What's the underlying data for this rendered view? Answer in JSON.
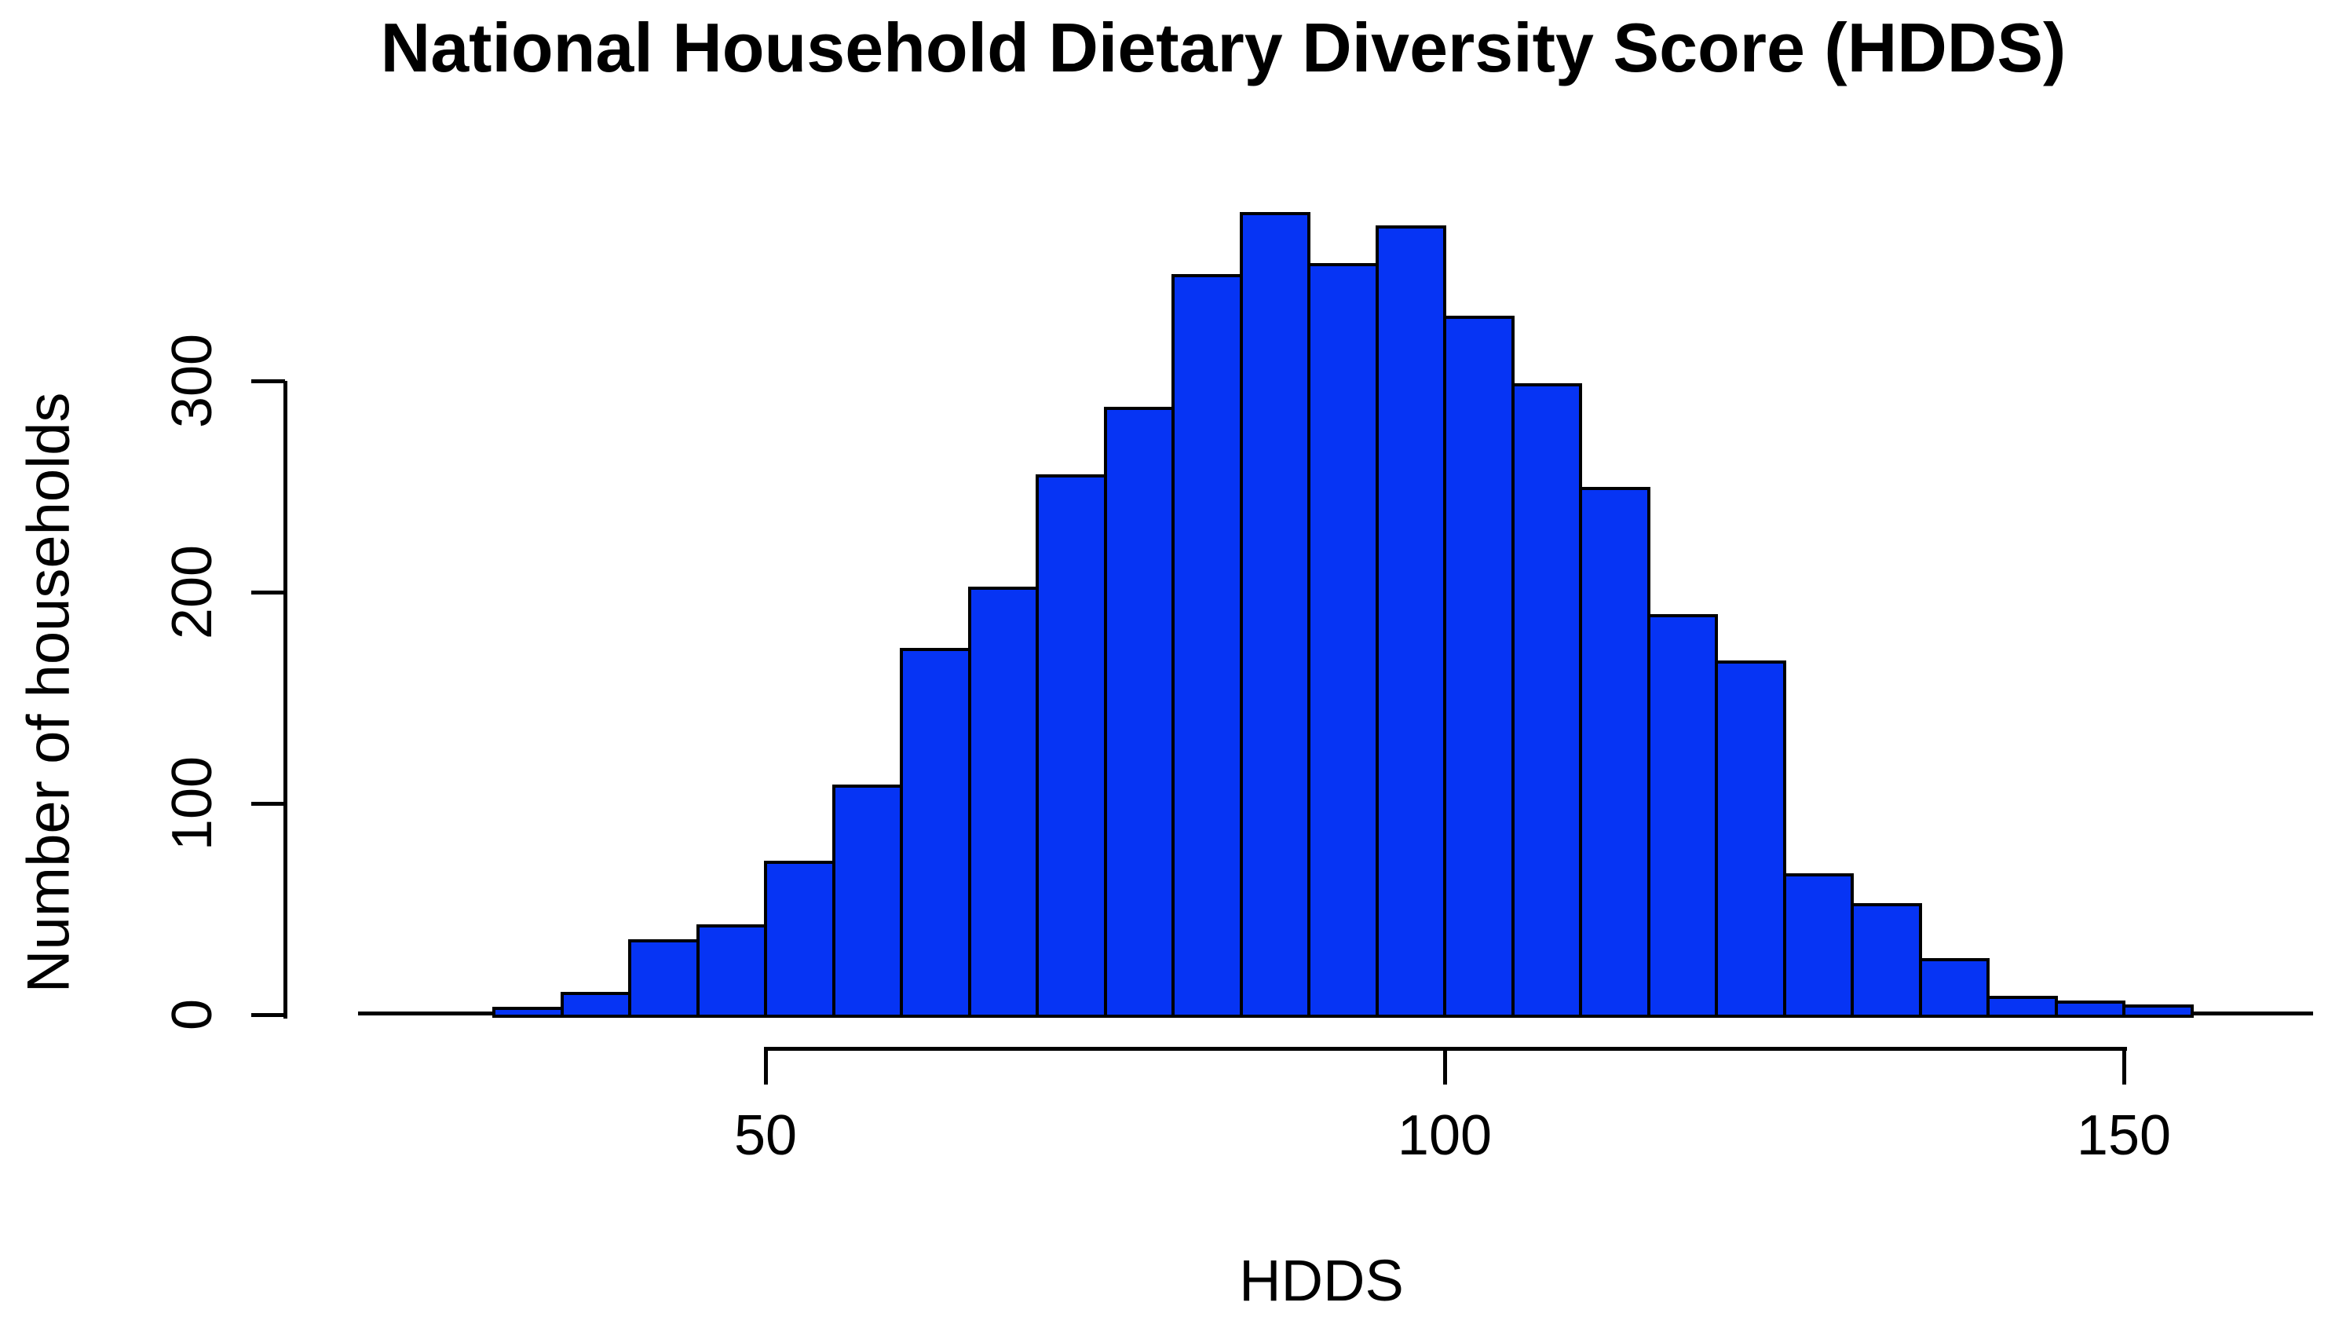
{
  "title": "National Household Dietary Diversity Score (HDDS)",
  "x_axis": {
    "label": "HDDS",
    "ticks": [
      50,
      100,
      150
    ]
  },
  "y_axis": {
    "label": "Number of households",
    "ticks": [
      0,
      100,
      200,
      300
    ]
  },
  "colors": {
    "bar_fill": "#0634f4",
    "bar_border": "#000000",
    "axis": "#000000",
    "text": "#000000",
    "background": "#ffffff"
  },
  "chart_data": {
    "type": "bar",
    "subtype": "histogram",
    "title": "National Household Dietary Diversity Score (HDDS)",
    "xlabel": "HDDS",
    "ylabel": "Number of households",
    "xlim": [
      20,
      165
    ],
    "ylim": [
      0,
      300
    ],
    "grid": false,
    "legend": false,
    "bin_width": 5,
    "x_ticks": [
      50,
      100,
      150
    ],
    "y_ticks": [
      0,
      100,
      200,
      300
    ],
    "bins": [
      {
        "start": 30,
        "end": 35,
        "count": 3
      },
      {
        "start": 35,
        "end": 40,
        "count": 10
      },
      {
        "start": 40,
        "end": 45,
        "count": 35
      },
      {
        "start": 45,
        "end": 50,
        "count": 42
      },
      {
        "start": 50,
        "end": 55,
        "count": 72
      },
      {
        "start": 55,
        "end": 60,
        "count": 108
      },
      {
        "start": 60,
        "end": 65,
        "count": 173
      },
      {
        "start": 65,
        "end": 70,
        "count": 202
      },
      {
        "start": 70,
        "end": 75,
        "count": 255
      },
      {
        "start": 75,
        "end": 80,
        "count": 287
      },
      {
        "start": 80,
        "end": 85,
        "count": 350
      },
      {
        "start": 85,
        "end": 90,
        "count": 379
      },
      {
        "start": 90,
        "end": 95,
        "count": 355
      },
      {
        "start": 95,
        "end": 100,
        "count": 373
      },
      {
        "start": 100,
        "end": 105,
        "count": 330
      },
      {
        "start": 105,
        "end": 110,
        "count": 298
      },
      {
        "start": 110,
        "end": 115,
        "count": 249
      },
      {
        "start": 115,
        "end": 120,
        "count": 189
      },
      {
        "start": 120,
        "end": 125,
        "count": 167
      },
      {
        "start": 125,
        "end": 130,
        "count": 66
      },
      {
        "start": 130,
        "end": 135,
        "count": 52
      },
      {
        "start": 135,
        "end": 140,
        "count": 26
      },
      {
        "start": 140,
        "end": 145,
        "count": 8
      },
      {
        "start": 145,
        "end": 150,
        "count": 6
      },
      {
        "start": 150,
        "end": 155,
        "count": 4
      }
    ]
  }
}
